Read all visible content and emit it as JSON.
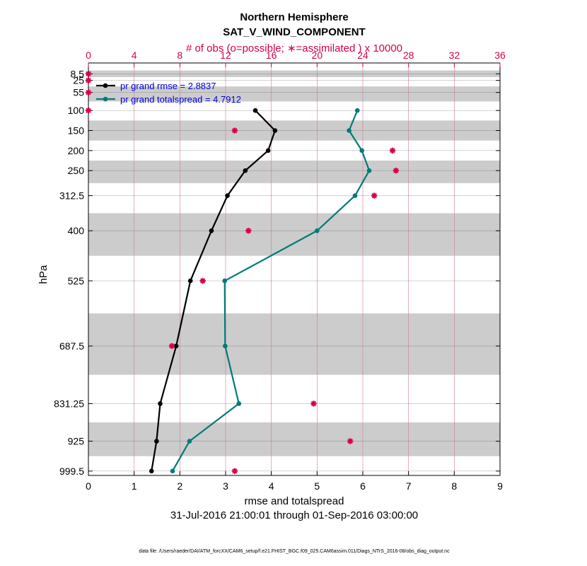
{
  "chart_data": {
    "type": "line",
    "title": "Northern Hemisphere",
    "subtitle": "SAT_V_WIND_COMPONENT",
    "top_axis_label": "# of obs (o=possible; ∗=assimilated ) x 10000",
    "xlabel": "rmse and totalspread",
    "ylabel": "hPa",
    "date_range": "31-Jul-2016 21:00:01 through 01-Sep-2016 03:00:00",
    "footnote": "data file: /Users/raeder/DAI/ATM_forcXX/CAM6_setup/f.e21.FHIST_BGC.f09_025.CAM6assim.011/Diags_NTrS_2016-08/obs_diag_output.nc",
    "xlim": [
      0,
      9
    ],
    "top_xlim": [
      0,
      36
    ],
    "x_ticks": [
      "0",
      "1",
      "2",
      "3",
      "4",
      "5",
      "6",
      "7",
      "8",
      "9"
    ],
    "top_ticks": [
      "0",
      "4",
      "8",
      "12",
      "16",
      "20",
      "24",
      "28",
      "32",
      "36"
    ],
    "y_levels": [
      8.5,
      25,
      55,
      100,
      150,
      200,
      250,
      312.5,
      400,
      525,
      687.5,
      831.25,
      925,
      999.5
    ],
    "y_labels": [
      "8.5",
      "25",
      "55",
      "100",
      "150",
      "200",
      "250",
      "312.5",
      "400",
      "525",
      "687.5",
      "831.25",
      "925",
      "999.5"
    ],
    "colors": {
      "rmse": "#000000",
      "spread": "#007a7a",
      "obs": "#d6004c",
      "legend_text": "#0000e0",
      "band": "#cccccc"
    },
    "series": [
      {
        "name": "pr grand rmse = 2.8837",
        "levels": [
          100,
          150,
          200,
          250,
          312.5,
          400,
          525,
          687.5,
          831.25,
          925,
          999.5
        ],
        "values": [
          3.65,
          4.08,
          3.93,
          3.43,
          3.04,
          2.69,
          2.23,
          1.92,
          1.57,
          1.49,
          1.38
        ]
      },
      {
        "name": "pr grand totalspread = 4.7912",
        "levels": [
          100,
          150,
          200,
          250,
          312.5,
          400,
          525,
          687.5,
          831.25,
          925,
          999.5
        ],
        "values": [
          5.88,
          5.7,
          5.98,
          6.14,
          5.83,
          5.0,
          2.98,
          2.99,
          3.29,
          2.21,
          1.84
        ]
      }
    ],
    "obs_assimilated": {
      "levels": [
        8.5,
        25,
        55,
        100,
        150,
        200,
        250,
        312.5,
        400,
        525,
        687.5,
        831.25,
        925,
        999.5
      ],
      "values": [
        0,
        0,
        0,
        0,
        12.8,
        26.6,
        26.9,
        25.0,
        14.0,
        10.0,
        7.3,
        19.7,
        22.9,
        12.8
      ]
    }
  }
}
